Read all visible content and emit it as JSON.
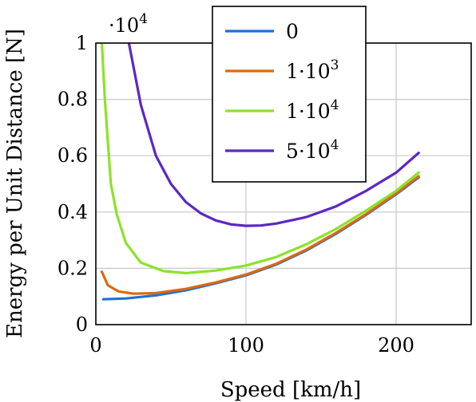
{
  "chart_data": {
    "type": "line",
    "title": "",
    "xlabel": "Speed [km/h]",
    "ylabel": "Energy per Unit Distance [N]",
    "y_scale_label": "·10",
    "y_scale_exponent": "4",
    "xlim": [
      0,
      250
    ],
    "ylim": [
      0,
      1
    ],
    "x_ticks": [
      0,
      100,
      200
    ],
    "y_ticks": [
      0,
      0.2,
      0.4,
      0.6,
      0.8,
      1
    ],
    "x_tick_labels": [
      "0",
      "100",
      "200"
    ],
    "y_tick_labels": [
      "0",
      "0.2",
      "0.4",
      "0.6",
      "0.8",
      "1"
    ],
    "grid": true,
    "legend_position": "top-center",
    "series": [
      {
        "name": "0",
        "legend_text": "0",
        "color": "#1f6fd8",
        "points": [
          [
            5,
            0.09
          ],
          [
            20,
            0.093
          ],
          [
            40,
            0.104
          ],
          [
            60,
            0.122
          ],
          [
            80,
            0.147
          ],
          [
            100,
            0.175
          ],
          [
            120,
            0.213
          ],
          [
            140,
            0.263
          ],
          [
            160,
            0.323
          ],
          [
            180,
            0.39
          ],
          [
            200,
            0.463
          ],
          [
            215,
            0.523
          ]
        ]
      },
      {
        "name": "1·10³",
        "legend_base": "1·10",
        "legend_exp": "3",
        "color": "#d96a12",
        "points": [
          [
            4,
            0.188
          ],
          [
            8,
            0.14
          ],
          [
            15,
            0.118
          ],
          [
            25,
            0.11
          ],
          [
            40,
            0.112
          ],
          [
            60,
            0.127
          ],
          [
            80,
            0.15
          ],
          [
            100,
            0.178
          ],
          [
            120,
            0.216
          ],
          [
            140,
            0.266
          ],
          [
            160,
            0.326
          ],
          [
            180,
            0.393
          ],
          [
            200,
            0.466
          ],
          [
            215,
            0.527
          ]
        ]
      },
      {
        "name": "1·10⁴",
        "legend_base": "1·10",
        "legend_exp": "4",
        "color": "#8ce228",
        "points": [
          [
            4,
            1.0
          ],
          [
            6,
            0.8
          ],
          [
            8,
            0.65
          ],
          [
            10,
            0.5
          ],
          [
            14,
            0.39
          ],
          [
            20,
            0.29
          ],
          [
            30,
            0.22
          ],
          [
            45,
            0.19
          ],
          [
            60,
            0.183
          ],
          [
            80,
            0.192
          ],
          [
            100,
            0.21
          ],
          [
            120,
            0.24
          ],
          [
            140,
            0.285
          ],
          [
            160,
            0.34
          ],
          [
            180,
            0.405
          ],
          [
            200,
            0.475
          ],
          [
            215,
            0.54
          ]
        ]
      },
      {
        "name": "5·10⁴",
        "legend_base": "5·10",
        "legend_exp": "4",
        "color": "#5b27c4",
        "points": [
          [
            22,
            1.0
          ],
          [
            30,
            0.78
          ],
          [
            40,
            0.6
          ],
          [
            50,
            0.5
          ],
          [
            60,
            0.435
          ],
          [
            70,
            0.395
          ],
          [
            80,
            0.37
          ],
          [
            90,
            0.356
          ],
          [
            100,
            0.351
          ],
          [
            110,
            0.352
          ],
          [
            120,
            0.359
          ],
          [
            140,
            0.382
          ],
          [
            160,
            0.42
          ],
          [
            180,
            0.475
          ],
          [
            200,
            0.54
          ],
          [
            215,
            0.61
          ]
        ]
      }
    ]
  }
}
